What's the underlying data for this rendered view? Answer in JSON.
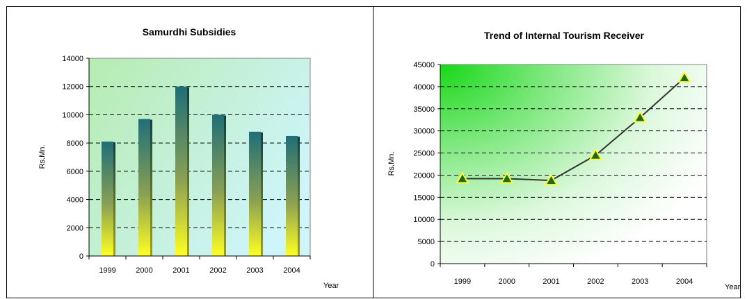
{
  "chart_data": [
    {
      "type": "bar",
      "title": "Samurdhi Subsidies",
      "xlabel": "Year",
      "ylabel": "Rs.Mn.",
      "categories": [
        "1999",
        "2000",
        "2001",
        "2002",
        "2003",
        "2004"
      ],
      "values": [
        8100,
        9700,
        12000,
        10000,
        8800,
        8500
      ],
      "ylim": [
        0,
        14000
      ],
      "yticks": [
        0,
        2000,
        4000,
        6000,
        8000,
        10000,
        12000,
        14000
      ],
      "grid": true,
      "colors": {
        "bar_top": "#1f6e78",
        "bar_bottom": "#ffff22",
        "plot_bg_left": "#c4f0c0",
        "plot_bg_right": "#cdf4f8"
      }
    },
    {
      "type": "line",
      "title": "Trend of Internal Tourism Receiver",
      "xlabel": "Year",
      "ylabel": "Rs.Mn.",
      "categories": [
        "1999",
        "2000",
        "2001",
        "2002",
        "2003",
        "2004"
      ],
      "values": [
        19200,
        19200,
        18800,
        24500,
        33000,
        42000
      ],
      "ylim": [
        0,
        45000
      ],
      "yticks": [
        0,
        5000,
        10000,
        15000,
        20000,
        25000,
        30000,
        35000,
        40000,
        45000
      ],
      "grid": true,
      "colors": {
        "line": "#333333",
        "marker_fill": "#1e6b1e",
        "marker_edge": "#ffff33",
        "plot_bg": "#22dd22"
      }
    }
  ]
}
